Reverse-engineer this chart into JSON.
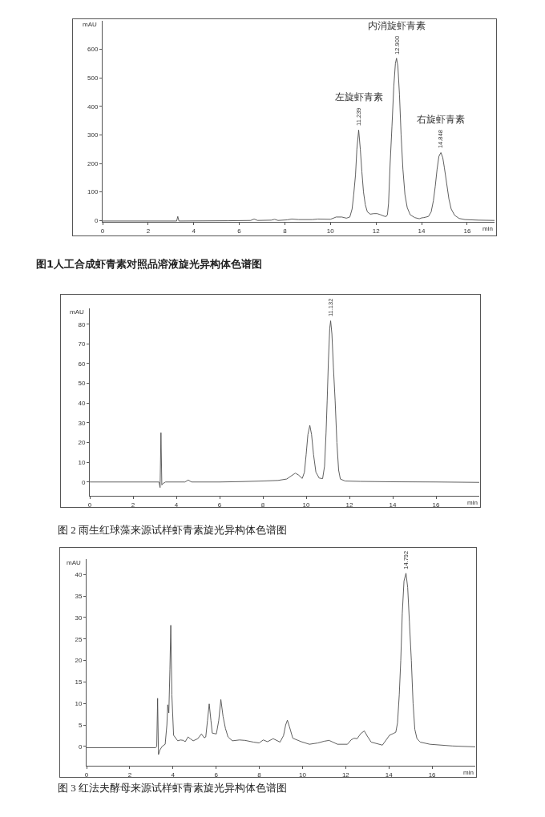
{
  "chart_data": [
    {
      "type": "line",
      "xlabel": "min",
      "ylabel": "mAU",
      "xlim": [
        0,
        17.2
      ],
      "ylim": [
        -5,
        700
      ],
      "xticks": [
        0,
        2,
        4,
        6,
        8,
        10,
        12,
        14,
        16
      ],
      "yticks": [
        0,
        100,
        200,
        300,
        400,
        500,
        600
      ],
      "series": [
        {
          "color": "#4d4d4d",
          "x": [
            0,
            3.25,
            3.3,
            3.35,
            5.5,
            6.5,
            6.65,
            6.8,
            7.4,
            7.55,
            7.7,
            8.1,
            8.3,
            8.6,
            9.2,
            9.45,
            10.0,
            10.25,
            10.5,
            10.7,
            10.85,
            10.95,
            11.02,
            11.1,
            11.16,
            11.239,
            11.31,
            11.38,
            11.45,
            11.53,
            11.62,
            11.75,
            11.9,
            12.05,
            12.2,
            12.35,
            12.45,
            12.5,
            12.55,
            12.62,
            12.7,
            12.78,
            12.85,
            12.9,
            12.96,
            13.03,
            13.1,
            13.18,
            13.27,
            13.37,
            13.5,
            13.7,
            13.9,
            14.0,
            14.1,
            14.3,
            14.42,
            14.52,
            14.6,
            14.68,
            14.76,
            14.848,
            14.93,
            15.0,
            15.1,
            15.2,
            15.3,
            15.45,
            15.65,
            15.9,
            16.5,
            17.2
          ],
          "values": [
            -2,
            -2,
            14,
            -2,
            -1,
            0,
            5,
            0,
            1,
            4,
            0,
            2,
            5,
            3,
            3,
            5,
            4,
            12,
            12,
            8,
            12,
            40,
            90,
            160,
            250,
            317,
            250,
            170,
            100,
            55,
            30,
            22,
            24,
            24,
            20,
            15,
            14,
            20,
            60,
            200,
            330,
            470,
            550,
            569,
            540,
            440,
            300,
            180,
            90,
            45,
            20,
            10,
            6,
            9,
            10,
            14,
            30,
            70,
            120,
            180,
            225,
            238,
            220,
            185,
            130,
            75,
            40,
            18,
            7,
            3,
            1,
            0
          ]
        }
      ],
      "annotations": [
        "图1人工合成虾青素对照品溶液旋光异构体色谱图",
        {
          "text": "11.239",
          "x": 11.239,
          "y": 317
        },
        "左旋虾青素",
        {
          "text": "12.900",
          "x": 12.9,
          "y": 569
        },
        "内消旋虾青素",
        {
          "text": "14.848",
          "x": 14.848,
          "y": 238
        },
        "右旋虾青素"
      ]
    },
    {
      "type": "line",
      "xlabel": "min",
      "ylabel": "mAU",
      "xlim": [
        0,
        18
      ],
      "ylim": [
        -7,
        88
      ],
      "xticks": [
        0,
        2,
        4,
        6,
        8,
        10,
        12,
        14,
        16
      ],
      "yticks": [
        0,
        10,
        20,
        30,
        40,
        50,
        60,
        70,
        80
      ],
      "series": [
        {
          "color": "#4d4d4d",
          "x": [
            0,
            3.2,
            3.25,
            3.29,
            3.33,
            3.38,
            3.5,
            4.4,
            4.55,
            4.7,
            6,
            7,
            8,
            8.7,
            9.1,
            9.3,
            9.5,
            9.65,
            9.82,
            9.92,
            10.0,
            10.08,
            10.17,
            10.25,
            10.34,
            10.45,
            10.6,
            10.76,
            10.85,
            10.92,
            10.97,
            11.03,
            11.09,
            11.132,
            11.19,
            11.26,
            11.34,
            11.42,
            11.5,
            11.58,
            11.8,
            12.5,
            14,
            16,
            18
          ],
          "values": [
            0,
            0,
            -2.8,
            25,
            -1.5,
            -0.8,
            0,
            0,
            1,
            0,
            0,
            0.2,
            0.5,
            0.8,
            1.5,
            3,
            4.5,
            3.5,
            1.8,
            5,
            14,
            24,
            28.7,
            24,
            14,
            5,
            2,
            1.7,
            8,
            25,
            41,
            62,
            78,
            81.7,
            75,
            58,
            41,
            20,
            6,
            1.5,
            0.5,
            0.3,
            0.1,
            0,
            -0.2
          ]
        }
      ],
      "annotations": [
        "图 2 雨生红球藻来源试样虾青素旋光异构体色谱图",
        {
          "text": "11.132",
          "x": 11.132,
          "y": 81.7
        }
      ]
    },
    {
      "type": "line",
      "xlabel": "min",
      "ylabel": "mAU",
      "xlim": [
        0,
        18
      ],
      "ylim": [
        -4.5,
        43.6
      ],
      "xticks": [
        0,
        2,
        4,
        6,
        8,
        10,
        12,
        14,
        16
      ],
      "yticks": [
        0,
        5,
        10,
        15,
        20,
        25,
        30,
        35,
        40
      ],
      "series": [
        {
          "color": "#4d4d4d",
          "x": [
            0,
            3.2,
            3.25,
            3.29,
            3.33,
            3.4,
            3.5,
            3.64,
            3.72,
            3.76,
            3.81,
            3.86,
            3.9,
            3.95,
            4.03,
            4.22,
            4.35,
            4.48,
            4.57,
            4.7,
            4.8,
            4.94,
            5.15,
            5.32,
            5.45,
            5.52,
            5.6,
            5.68,
            5.76,
            5.82,
            6.01,
            6.12,
            6.22,
            6.32,
            6.43,
            6.55,
            6.75,
            7.08,
            7.34,
            7.73,
            7.99,
            8.18,
            8.38,
            8.64,
            8.96,
            9.12,
            9.22,
            9.3,
            9.4,
            9.55,
            9.94,
            10.32,
            10.71,
            11.0,
            11.23,
            11.62,
            12.08,
            12.25,
            12.38,
            12.53,
            12.7,
            12.86,
            13.0,
            13.18,
            13.7,
            14.03,
            14.2,
            14.32,
            14.4,
            14.48,
            14.55,
            14.62,
            14.7,
            14.792,
            14.87,
            14.95,
            15.04,
            15.12,
            15.2,
            15.3,
            15.45,
            15.9,
            16.95,
            18
          ],
          "values": [
            -0.3,
            -0.3,
            0,
            11.2,
            -1.9,
            -0.8,
            0,
            0.5,
            5,
            9.7,
            7.8,
            18,
            28.2,
            12,
            2.6,
            1.3,
            1.5,
            1.4,
            1.1,
            2.2,
            1.8,
            1.3,
            1.8,
            2.9,
            2.0,
            2.2,
            6,
            9.9,
            6,
            3.1,
            2.9,
            6,
            10.9,
            7,
            4.2,
            2.2,
            1.3,
            1.5,
            1.4,
            1.0,
            0.8,
            1.5,
            1.1,
            1.8,
            1.0,
            2.5,
            5,
            6.1,
            4.5,
            1.9,
            1.1,
            0.5,
            0.8,
            1.2,
            1.4,
            0.5,
            0.5,
            1.5,
            1.9,
            1.8,
            3,
            3.6,
            2.4,
            1.0,
            0.3,
            2.6,
            3.0,
            3.3,
            5.5,
            12,
            20,
            31,
            38.5,
            40.3,
            37,
            29,
            20,
            10,
            4,
            1.8,
            1.0,
            0.5,
            0.1,
            -0.1
          ]
        }
      ],
      "annotations": [
        "图 3 红法夫酵母来源试样虾青素旋光异构体色谱图",
        {
          "text": "14.792",
          "x": 14.792,
          "y": 40.3
        }
      ]
    }
  ]
}
